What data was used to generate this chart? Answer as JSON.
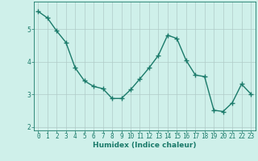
{
  "x": [
    0,
    1,
    2,
    3,
    4,
    5,
    6,
    7,
    8,
    9,
    10,
    11,
    12,
    13,
    14,
    15,
    16,
    17,
    18,
    19,
    20,
    21,
    22,
    23
  ],
  "y": [
    5.55,
    5.35,
    4.95,
    4.6,
    3.82,
    3.42,
    3.25,
    3.18,
    2.88,
    2.88,
    3.15,
    3.48,
    3.82,
    4.2,
    4.82,
    4.72,
    4.05,
    3.6,
    3.55,
    2.52,
    2.48,
    2.75,
    3.32,
    3.02
  ],
  "line_color": "#1a7a6a",
  "marker": "+",
  "markersize": 4,
  "markeredgewidth": 1.0,
  "linewidth": 1.0,
  "bg_color": "#cff0ea",
  "grid_color_major": "#b0ccc8",
  "xlabel": "Humidex (Indice chaleur)",
  "xlabel_fontsize": 6.5,
  "xlabel_color": "#1a7a6a",
  "tick_color": "#1a7a6a",
  "tick_fontsize": 5.5,
  "ylim": [
    1.9,
    5.85
  ],
  "xlim": [
    -0.5,
    23.5
  ],
  "yticks": [
    2,
    3,
    4,
    5
  ],
  "xticks": [
    0,
    1,
    2,
    3,
    4,
    5,
    6,
    7,
    8,
    9,
    10,
    11,
    12,
    13,
    14,
    15,
    16,
    17,
    18,
    19,
    20,
    21,
    22,
    23
  ]
}
